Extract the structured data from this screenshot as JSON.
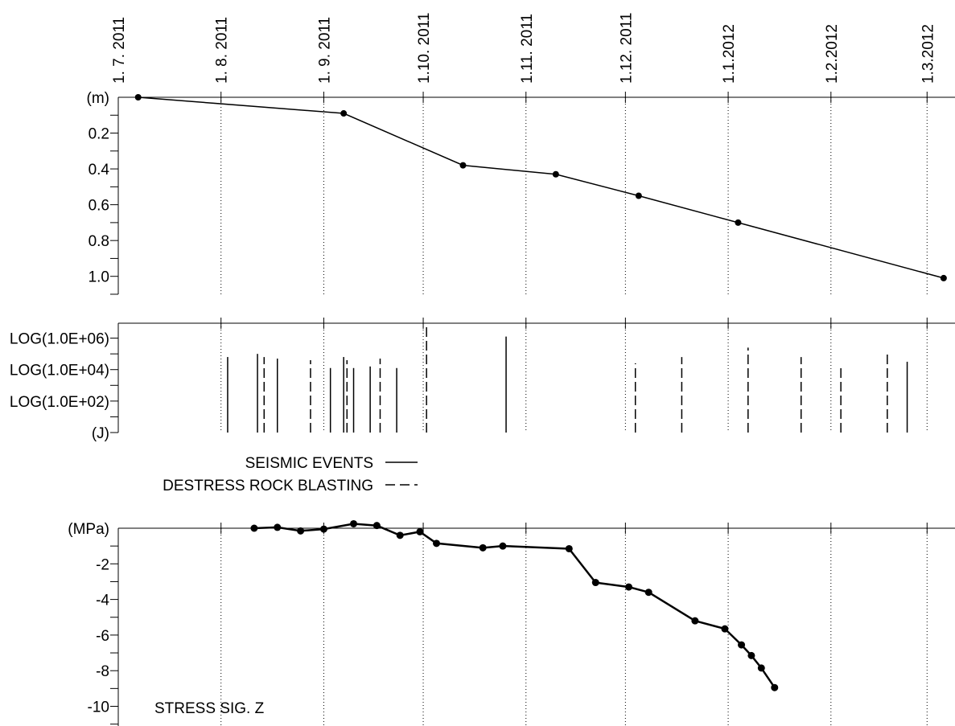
{
  "chart_data": [
    {
      "type": "line",
      "panel": "depth",
      "x_axis_labels": [
        "1. 7. 2011",
        "1. 8. 2011",
        "1. 9. 2011",
        "1.10. 2011",
        "1.11. 2011",
        "1.12. 2011",
        "1.1.2012",
        "1.2.2012",
        "1.3.2012"
      ],
      "ylabel": "(m)",
      "ylim": [
        0,
        1.1
      ],
      "y_inverted": true,
      "y_ticks": [
        "0.2",
        "0.4",
        "0.6",
        "0.8",
        "1.0"
      ],
      "grid": "vertical dotted at month starts",
      "series": [
        {
          "points": [
            {
              "x": "2011-07-07",
              "y": 0.0
            },
            {
              "x": "2011-09-07",
              "y": 0.09
            },
            {
              "x": "2011-10-13",
              "y": 0.38
            },
            {
              "x": "2011-11-10",
              "y": 0.43
            },
            {
              "x": "2011-12-05",
              "y": 0.55
            },
            {
              "x": "2012-01-04",
              "y": 0.7
            },
            {
              "x": "2012-03-06",
              "y": 1.01
            }
          ]
        }
      ]
    },
    {
      "type": "bar",
      "panel": "energy",
      "ylabel": "(J)",
      "y_ticks": [
        "LOG(1.0E+02)",
        "LOG(1.0E+04)",
        "LOG(1.0E+06)"
      ],
      "ylim": [
        0,
        7
      ],
      "legend": {
        "position": "below",
        "entries": [
          {
            "label": "SEISMIC EVENTS",
            "style": "solid"
          },
          {
            "label": "DESTRESS ROCK BLASTING",
            "style": "dashed"
          }
        ]
      },
      "events": [
        {
          "date": "2011-08-03",
          "value": 4.8,
          "kind": "seismic"
        },
        {
          "date": "2011-08-12",
          "value": 5.0,
          "kind": "seismic"
        },
        {
          "date": "2011-08-14",
          "value": 4.8,
          "kind": "blasting"
        },
        {
          "date": "2011-08-18",
          "value": 4.7,
          "kind": "seismic"
        },
        {
          "date": "2011-08-28",
          "value": 4.6,
          "kind": "blasting"
        },
        {
          "date": "2011-09-03",
          "value": 4.1,
          "kind": "seismic"
        },
        {
          "date": "2011-09-07",
          "value": 4.8,
          "kind": "seismic"
        },
        {
          "date": "2011-09-08",
          "value": 4.6,
          "kind": "blasting"
        },
        {
          "date": "2011-09-10",
          "value": 4.1,
          "kind": "seismic"
        },
        {
          "date": "2011-09-15",
          "value": 4.2,
          "kind": "seismic"
        },
        {
          "date": "2011-09-18",
          "value": 4.7,
          "kind": "blasting"
        },
        {
          "date": "2011-09-23",
          "value": 4.1,
          "kind": "seismic"
        },
        {
          "date": "2011-10-02",
          "value": 7.0,
          "kind": "blasting"
        },
        {
          "date": "2011-10-26",
          "value": 6.1,
          "kind": "seismic"
        },
        {
          "date": "2011-12-04",
          "value": 4.4,
          "kind": "blasting"
        },
        {
          "date": "2011-12-18",
          "value": 4.8,
          "kind": "blasting"
        },
        {
          "date": "2012-01-07",
          "value": 5.4,
          "kind": "blasting"
        },
        {
          "date": "2012-01-23",
          "value": 4.8,
          "kind": "blasting"
        },
        {
          "date": "2012-02-04",
          "value": 4.2,
          "kind": "blasting"
        },
        {
          "date": "2012-02-18",
          "value": 5.2,
          "kind": "blasting"
        },
        {
          "date": "2012-02-24",
          "value": 4.5,
          "kind": "seismic"
        }
      ]
    },
    {
      "type": "line",
      "panel": "stress",
      "ylabel": "(MPa)",
      "ylim": [
        -11,
        0
      ],
      "y_ticks": [
        "-2",
        "-4",
        "-6",
        "-8",
        "-10"
      ],
      "annotation": "STRESS  SIG. Z",
      "series": [
        {
          "points": [
            {
              "x": "2011-08-11",
              "y": 0.0
            },
            {
              "x": "2011-08-18",
              "y": 0.05
            },
            {
              "x": "2011-08-25",
              "y": -0.15
            },
            {
              "x": "2011-09-01",
              "y": -0.05
            },
            {
              "x": "2011-09-10",
              "y": 0.25
            },
            {
              "x": "2011-09-17",
              "y": 0.15
            },
            {
              "x": "2011-09-24",
              "y": -0.4
            },
            {
              "x": "2011-09-30",
              "y": -0.2
            },
            {
              "x": "2011-10-05",
              "y": -0.85
            },
            {
              "x": "2011-10-19",
              "y": -1.1
            },
            {
              "x": "2011-10-25",
              "y": -1.0
            },
            {
              "x": "2011-11-14",
              "y": -1.15
            },
            {
              "x": "2011-11-22",
              "y": -3.05
            },
            {
              "x": "2011-12-02",
              "y": -3.3
            },
            {
              "x": "2011-12-08",
              "y": -3.6
            },
            {
              "x": "2011-12-22",
              "y": -5.2
            },
            {
              "x": "2011-12-31",
              "y": -5.65
            },
            {
              "x": "2012-01-05",
              "y": -6.55
            },
            {
              "x": "2012-01-08",
              "y": -7.15
            },
            {
              "x": "2012-01-11",
              "y": -7.85
            },
            {
              "x": "2012-01-15",
              "y": -8.95
            }
          ]
        }
      ]
    }
  ]
}
